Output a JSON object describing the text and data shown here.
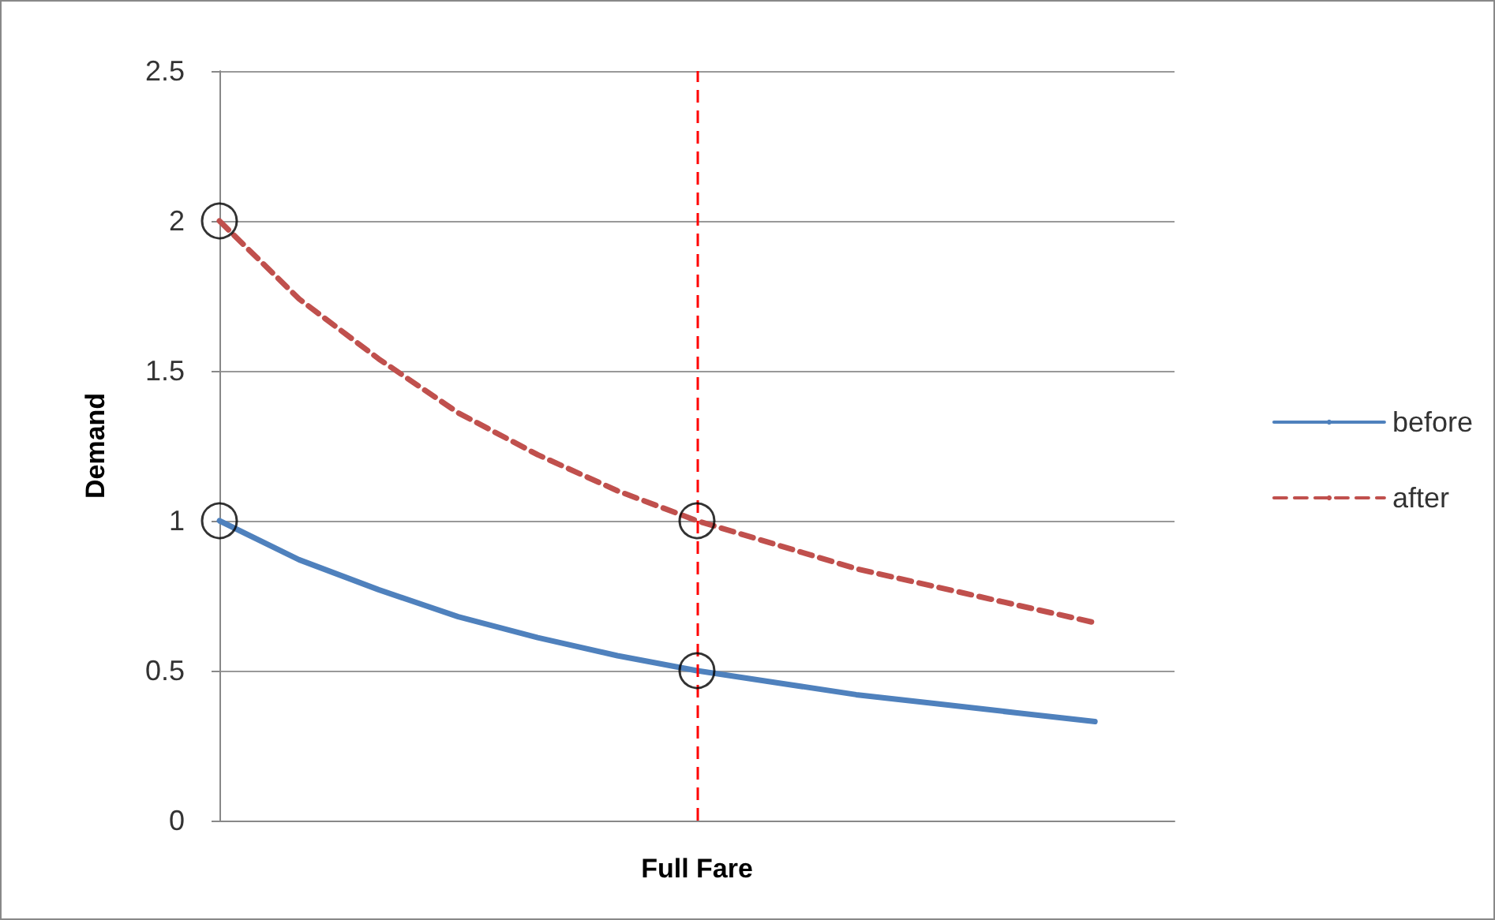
{
  "chart_data": {
    "type": "line",
    "xlabel": "Full Fare",
    "ylabel": "Demand",
    "categories": [
      null,
      null,
      null,
      null,
      null,
      null,
      null,
      null,
      null,
      null,
      null,
      null,
      null
    ],
    "ylim": [
      0,
      2.5
    ],
    "yticks": [
      0,
      0.5,
      1,
      1.5,
      2,
      2.5
    ],
    "tick_labels": "y",
    "grid": "y",
    "legend": "right",
    "marker": "none",
    "series": [
      {
        "name": "before",
        "color": "#4f81bd",
        "line_style": "solid",
        "values": [
          1,
          0.87,
          0.77,
          0.68,
          0.61,
          0.55,
          0.5,
          0.46,
          0.42,
          0.39,
          0.36,
          0.33,
          null
        ]
      },
      {
        "name": "after",
        "color": "#c0504d",
        "line_style": "dashed",
        "values": [
          2,
          1.74,
          1.54,
          1.36,
          1.22,
          1.1,
          1,
          0.92,
          0.84,
          0.78,
          0.72,
          0.66,
          null
        ]
      },
      {
        "type": "scatter",
        "color": "#000000",
        "marker": "circle",
        "values": [
          2,
          null,
          null,
          null,
          null,
          null,
          1,
          null,
          null,
          null,
          null,
          null,
          null
        ]
      },
      {
        "type": "scatter",
        "color": "#000000",
        "marker": "circle",
        "values": [
          1,
          null,
          null,
          null,
          null,
          null,
          0.5,
          null,
          null,
          null,
          null,
          null,
          null
        ]
      }
    ]
  }
}
